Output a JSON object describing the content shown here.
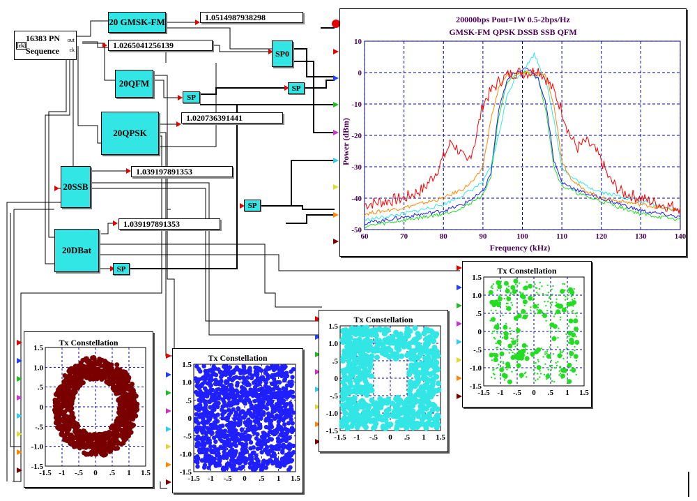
{
  "pn_source": {
    "title": "16383 PN",
    "subtitle": "Sequence",
    "port_out": "out",
    "port_ck": "ck",
    "port_in": "[ck]"
  },
  "blocks": {
    "gmsk": "20 GMSK-FM",
    "qfm": "20QFM",
    "qpsk": "20QPSK",
    "ssb": "20SSB",
    "dbat": "20DBat",
    "sp0": "SP0"
  },
  "sp_label": "SP",
  "readouts": {
    "gmsk": "1.0514987938298",
    "pn": "1.0265041256139",
    "qpsk": "1.020736391441",
    "ssb": "1.039197891353",
    "dbat": "1.039197891353"
  },
  "colors": {
    "cyan_block": "#33e6e6",
    "maroon": "#7a0000",
    "blue": "#1f1fff",
    "cyan": "#33e6e6",
    "green": "#22dd22",
    "red": "#ff0000",
    "orange": "#ff8800",
    "grid": "#0000aa",
    "title": "#4b0055"
  },
  "spectrum": {
    "title_line1": "20000bps Pout=1W 0.5-2bps/Hz",
    "title_line2": "GMSK-FM  QPSK DSSB SSB QFM",
    "chart_data": {
      "type": "line",
      "title": "20000bps Pout=1W 0.5-2bps/Hz",
      "subtitle": "GMSK-FM  QPSK DSSB SSB QFM",
      "xlabel": "Frequency (kHz)",
      "ylabel": "Power (dBm)",
      "xlim": [
        60,
        140
      ],
      "ylim": [
        -50,
        10
      ],
      "xticks": [
        60,
        70,
        80,
        90,
        100,
        110,
        120,
        130,
        140
      ],
      "yticks": [
        10,
        0,
        -10,
        -20,
        -30,
        -40,
        -50
      ],
      "grid": true,
      "series": [
        {
          "name": "red",
          "color": "#ff0000",
          "x": [
            60,
            65,
            70,
            75,
            78,
            80,
            82,
            84,
            86,
            88,
            90,
            92,
            94,
            96,
            98,
            100,
            102,
            104,
            106,
            108,
            110,
            112,
            114,
            116,
            118,
            120,
            122,
            125,
            130,
            135,
            140
          ],
          "y": [
            -42,
            -41,
            -40,
            -37,
            -32,
            -27,
            -22,
            -25,
            -29,
            -22,
            -10,
            -6,
            -3,
            -1,
            0,
            0,
            0,
            1,
            -2,
            -6,
            -12,
            -20,
            -24,
            -22,
            -24,
            -28,
            -34,
            -38,
            -40,
            -42,
            -43
          ]
        },
        {
          "name": "orange",
          "color": "#ff8800",
          "x": [
            60,
            70,
            80,
            85,
            88,
            90,
            92,
            94,
            96,
            98,
            100,
            102,
            104,
            106,
            108,
            110,
            112,
            115,
            120,
            130,
            140
          ],
          "y": [
            -45,
            -43,
            -40,
            -37,
            -34,
            -30,
            -15,
            -5,
            -1,
            0,
            0,
            0,
            0,
            -1,
            -10,
            -28,
            -33,
            -37,
            -40,
            -42,
            -44
          ]
        },
        {
          "name": "cyan",
          "color": "#33e6e6",
          "x": [
            60,
            70,
            80,
            85,
            90,
            92,
            94,
            96,
            98,
            100,
            102,
            103,
            104,
            106,
            108,
            110,
            112,
            116,
            120,
            130,
            140
          ],
          "y": [
            -47,
            -45,
            -42,
            -39,
            -35,
            -30,
            -20,
            -8,
            -2,
            0,
            4,
            6,
            3,
            -3,
            -15,
            -30,
            -33,
            -36,
            -38,
            -41,
            -44
          ]
        },
        {
          "name": "blue",
          "color": "#1f1fff",
          "x": [
            60,
            70,
            80,
            85,
            90,
            92,
            94,
            96,
            98,
            100,
            102,
            104,
            106,
            108,
            110,
            115,
            120,
            130,
            140
          ],
          "y": [
            -48,
            -46,
            -44,
            -42,
            -38,
            -32,
            -12,
            -3,
            0,
            1,
            1,
            -2,
            -10,
            -28,
            -35,
            -38,
            -40,
            -44,
            -46
          ]
        },
        {
          "name": "green",
          "color": "#22dd22",
          "x": [
            60,
            70,
            80,
            85,
            90,
            92,
            94,
            96,
            98,
            100,
            102,
            104,
            106,
            108,
            110,
            115,
            120,
            130,
            140
          ],
          "y": [
            -49,
            -47,
            -45,
            -43,
            -39,
            -33,
            -14,
            -4,
            -1,
            0,
            0,
            -2,
            -12,
            -30,
            -36,
            -39,
            -41,
            -45,
            -47
          ]
        }
      ]
    }
  },
  "constellations": [
    {
      "title": "Tx Constellation",
      "color": "#7a0000",
      "xticks": [
        "-1.5",
        "-1",
        "-.5",
        "0",
        ".5",
        "1",
        "1.5"
      ],
      "yticks": [
        "1.5",
        "1.0",
        ".5",
        "0",
        "-.5",
        "-1.0",
        "-1.5"
      ],
      "chart_data": {
        "type": "scatter",
        "title": "Tx Constellation",
        "pattern": "ring",
        "xlim": [
          -1.5,
          1.5
        ],
        "ylim": [
          -1.5,
          1.5
        ]
      }
    },
    {
      "title": "Tx Constellation",
      "color": "#1f1fff",
      "xticks": [
        "-1.5",
        "-1",
        "-.5",
        "0",
        ".5",
        "1",
        "1.5"
      ],
      "yticks": [
        "1.5",
        "1.0",
        ".5",
        "0",
        "-.5",
        "-1.0",
        "-1.5"
      ],
      "chart_data": {
        "type": "scatter",
        "title": "Tx Constellation",
        "pattern": "square",
        "xlim": [
          -1.5,
          1.5
        ],
        "ylim": [
          -1.5,
          1.5
        ]
      }
    },
    {
      "title": "Tx Constellation",
      "color": "#33e6e6",
      "xticks": [
        "-1.5",
        "-1",
        "-.5",
        "0",
        ".5",
        "1",
        "1.5"
      ],
      "yticks": [
        "1.5",
        "1.0",
        ".5",
        "0",
        "-.5",
        "-1.0",
        "-1.5"
      ],
      "chart_data": {
        "type": "scatter",
        "title": "Tx Constellation",
        "pattern": "square-ring",
        "xlim": [
          -1.5,
          1.5
        ],
        "ylim": [
          -1.5,
          1.5
        ]
      }
    },
    {
      "title": "Tx Constellation",
      "color": "#22dd22",
      "xticks": [
        "-1.5",
        "-1",
        "-.5",
        "0",
        ".5",
        "1",
        "1.5"
      ],
      "yticks": [
        "1.5",
        "1.0",
        ".5",
        "0",
        "-.5",
        "-1.0",
        "-1.5"
      ],
      "chart_data": {
        "type": "scatter",
        "title": "Tx Constellation",
        "pattern": "sparse",
        "xlim": [
          -1.5,
          1.5
        ],
        "ylim": [
          -1.5,
          1.5
        ]
      }
    }
  ]
}
